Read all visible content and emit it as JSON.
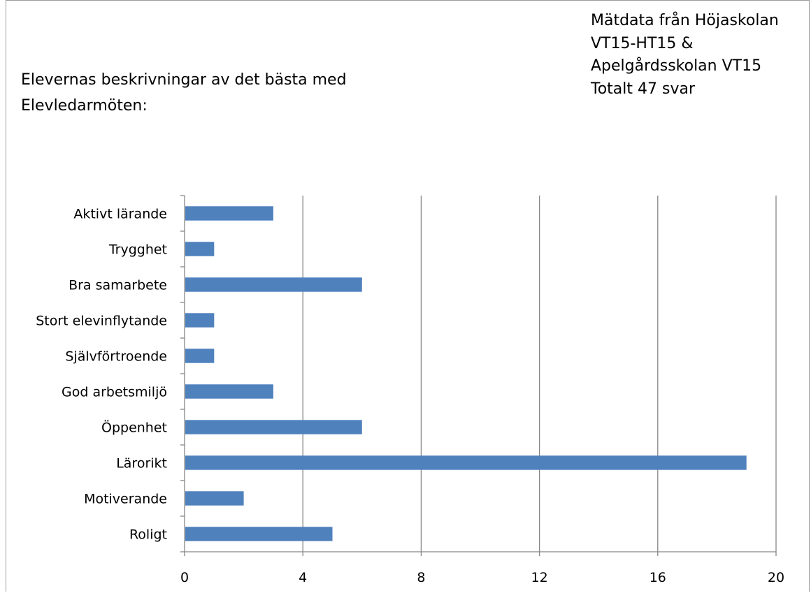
{
  "chart_data": {
    "type": "bar",
    "orientation": "horizontal",
    "title_lines": [
      "Elevernas beskrivningar av det bästa med",
      "Elevledarmöten:"
    ],
    "annotation_lines": [
      "Mätdata från Höjaskolan",
      "VT15-HT15 &",
      "Apelgårdsskolan VT15",
      "Totalt 47 svar"
    ],
    "categories": [
      "Aktivt lärande",
      "Trygghet",
      "Bra samarbete",
      "Stort elevinflytande",
      "Självförtroende",
      "God arbetsmiljö",
      "Öppenhet",
      "Lärorikt",
      "Motiverande",
      "Roligt"
    ],
    "values": [
      3,
      1,
      6,
      1,
      1,
      3,
      6,
      19,
      2,
      5
    ],
    "xlim": [
      0,
      20
    ],
    "xticks": [
      0,
      4,
      8,
      12,
      16,
      20
    ],
    "grid": "vertical",
    "bar_color": "#4f81bd"
  }
}
